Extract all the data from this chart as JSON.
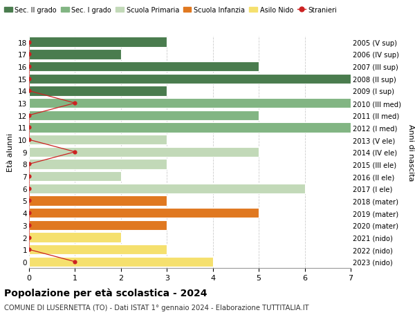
{
  "ages": [
    18,
    17,
    16,
    15,
    14,
    13,
    12,
    11,
    10,
    9,
    8,
    7,
    6,
    5,
    4,
    3,
    2,
    1,
    0
  ],
  "labels_right": [
    "2005 (V sup)",
    "2006 (IV sup)",
    "2007 (III sup)",
    "2008 (II sup)",
    "2009 (I sup)",
    "2010 (III med)",
    "2011 (II med)",
    "2012 (I med)",
    "2013 (V ele)",
    "2014 (IV ele)",
    "2015 (III ele)",
    "2016 (II ele)",
    "2017 (I ele)",
    "2018 (mater)",
    "2019 (mater)",
    "2020 (mater)",
    "2021 (nido)",
    "2022 (nido)",
    "2023 (nido)"
  ],
  "bar_values": [
    3,
    2,
    5,
    7,
    3,
    7,
    5,
    7,
    3,
    5,
    3,
    2,
    6,
    3,
    5,
    3,
    2,
    3,
    4
  ],
  "bar_colors": [
    "#4a7c4e",
    "#4a7c4e",
    "#4a7c4e",
    "#4a7c4e",
    "#4a7c4e",
    "#82b583",
    "#82b583",
    "#82b583",
    "#c2d9b8",
    "#c2d9b8",
    "#c2d9b8",
    "#c2d9b8",
    "#c2d9b8",
    "#e07820",
    "#e07820",
    "#e07820",
    "#f5e06e",
    "#f5e06e",
    "#f5e06e"
  ],
  "stranieri_x": [
    0,
    0,
    0,
    0,
    0,
    1,
    0,
    0,
    0,
    1,
    0,
    0,
    0,
    0,
    0,
    0,
    0,
    0,
    1
  ],
  "color_sec2": "#4a7c4e",
  "color_sec1": "#82b583",
  "color_prim": "#c2d9b8",
  "color_inf": "#e07820",
  "color_nido": "#f5e06e",
  "color_stranieri": "#cc2222",
  "title": "Popolazione per età scolastica - 2024",
  "subtitle": "COMUNE DI LUSERNETTA (TO) - Dati ISTAT 1° gennaio 2024 - Elaborazione TUTTITALIA.IT",
  "ylabel_left": "Età alunni",
  "ylabel_right": "Anni di nascita",
  "xlim": [
    0,
    7
  ],
  "xticks": [
    0,
    1,
    2,
    3,
    4,
    5,
    6,
    7
  ],
  "bg_color": "#ffffff",
  "grid_color": "#cccccc",
  "bar_height": 0.82
}
